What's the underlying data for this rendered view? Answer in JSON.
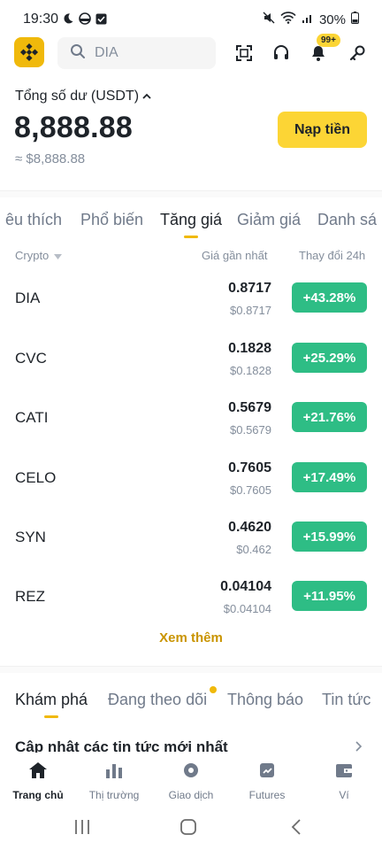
{
  "status": {
    "time": "19:30",
    "battery": "30%"
  },
  "search": {
    "placeholder": "DIA"
  },
  "notifications": {
    "badge": "99+"
  },
  "balance": {
    "label": "Tổng số dư",
    "currency": "(USDT)",
    "value": "8,888.88",
    "approx": "≈ $8,888.88",
    "deposit_label": "Nạp tiền"
  },
  "market_tabs": [
    "êu thích",
    "Phổ biến",
    "Tăng giá",
    "Giảm giá",
    "Danh sá"
  ],
  "active_market_tab": "Tăng giá",
  "columns": {
    "crypto": "Crypto",
    "last_price": "Giá gần nhất",
    "change": "Thay đổi 24h"
  },
  "rows": [
    {
      "symbol": "DIA",
      "price": "0.8717",
      "fiat": "$0.8717",
      "change": "+43.28%"
    },
    {
      "symbol": "CVC",
      "price": "0.1828",
      "fiat": "$0.1828",
      "change": "+25.29%"
    },
    {
      "symbol": "CATI",
      "price": "0.5679",
      "fiat": "$0.5679",
      "change": "+21.76%"
    },
    {
      "symbol": "CELO",
      "price": "0.7605",
      "fiat": "$0.7605",
      "change": "+17.49%"
    },
    {
      "symbol": "SYN",
      "price": "0.4620",
      "fiat": "$0.462",
      "change": "+15.99%"
    },
    {
      "symbol": "REZ",
      "price": "0.04104",
      "fiat": "$0.04104",
      "change": "+11.95%"
    }
  ],
  "see_more": "Xem thêm",
  "feed_tabs": [
    "Khám phá",
    "Đang theo dõi",
    "Thông báo",
    "Tin tức"
  ],
  "news_title": "Cập nhật các tin tức mới nhất",
  "bottom_nav": [
    "Trang chủ",
    "Thị trường",
    "Giao dịch",
    "Futures",
    "Ví"
  ],
  "colors": {
    "brand": "#f0b90b",
    "button": "#fcd535",
    "positive": "#2ebd85",
    "link": "#c99400"
  }
}
